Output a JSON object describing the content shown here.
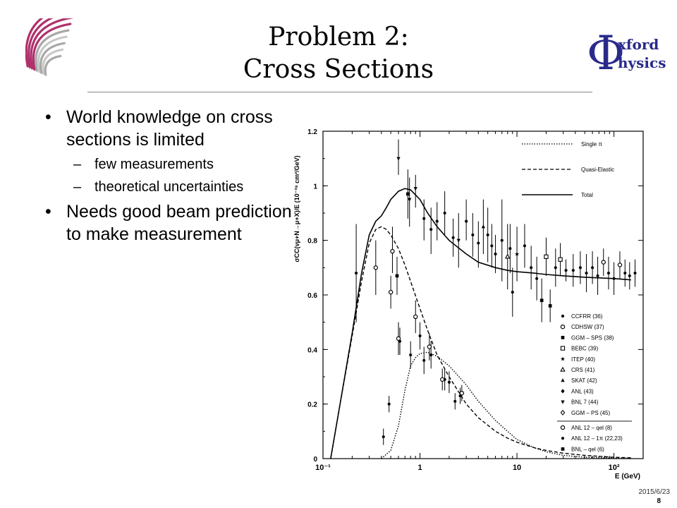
{
  "slide": {
    "title_line1": "Problem 2:",
    "title_line2": "Cross Sections",
    "bullets": [
      {
        "text": "World knowledge on cross sections is limited"
      },
      {
        "text": "few measurements"
      },
      {
        "text": "theoretical uncertainties"
      },
      {
        "text": "Needs good beam prediction to make measurement"
      }
    ],
    "footer_date": "2015/6/23",
    "page_number": "8"
  },
  "logo_right": {
    "letter": "Φ",
    "word1": "xford",
    "word2": "hysics",
    "colors": {
      "phi": "#2a2a8c",
      "text": "#2a2a8c"
    }
  },
  "logo_left": {
    "icon": "swirl-logo-icon",
    "colors": [
      "#a8a8a8",
      "#c8c8c8",
      "#b0306a"
    ]
  },
  "chart_data": {
    "type": "scatter",
    "xlabel": "E (GeV)",
    "ylabel": "σCC(νμ+N→μ+X)/E (10⁻³⁸ cm²/GeV)",
    "xscale": "log",
    "xlim": [
      0.1,
      200
    ],
    "ylim": [
      0,
      1.2
    ],
    "x_ticks": [
      {
        "v": 0.1,
        "label": "10⁻¹"
      },
      {
        "v": 1,
        "label": "1"
      },
      {
        "v": 10,
        "label": "10"
      },
      {
        "v": 100,
        "label": "10²"
      }
    ],
    "y_ticks": [
      0,
      0.2,
      0.4,
      0.6,
      0.8,
      1,
      1.2
    ],
    "y_tick_labels": [
      "0",
      "0.2",
      "0.4",
      "0.6",
      "0.8",
      "1",
      "1.2"
    ],
    "curves": [
      {
        "name": "Single π",
        "style": "dotted",
        "points": [
          [
            0.4,
            0
          ],
          [
            0.5,
            0.03
          ],
          [
            0.6,
            0.12
          ],
          [
            0.7,
            0.25
          ],
          [
            0.8,
            0.34
          ],
          [
            0.9,
            0.37
          ],
          [
            1.0,
            0.385
          ],
          [
            1.2,
            0.39
          ],
          [
            1.5,
            0.375
          ],
          [
            2,
            0.34
          ],
          [
            3,
            0.27
          ],
          [
            4,
            0.21
          ],
          [
            6,
            0.14
          ],
          [
            8,
            0.1
          ],
          [
            10,
            0.07
          ],
          [
            15,
            0.04
          ],
          [
            20,
            0.025
          ],
          [
            30,
            0.012
          ],
          [
            50,
            0.005
          ],
          [
            100,
            0.002
          ],
          [
            150,
            0.001
          ]
        ]
      },
      {
        "name": "Quasi-Elastic",
        "style": "dashed",
        "points": [
          [
            0.12,
            0
          ],
          [
            0.15,
            0.2
          ],
          [
            0.2,
            0.45
          ],
          [
            0.25,
            0.65
          ],
          [
            0.3,
            0.79
          ],
          [
            0.35,
            0.84
          ],
          [
            0.4,
            0.85
          ],
          [
            0.45,
            0.84
          ],
          [
            0.5,
            0.82
          ],
          [
            0.6,
            0.77
          ],
          [
            0.7,
            0.71
          ],
          [
            0.8,
            0.65
          ],
          [
            1.0,
            0.55
          ],
          [
            1.2,
            0.47
          ],
          [
            1.5,
            0.38
          ],
          [
            2,
            0.3
          ],
          [
            3,
            0.2
          ],
          [
            4,
            0.15
          ],
          [
            6,
            0.1
          ],
          [
            8,
            0.075
          ],
          [
            10,
            0.06
          ],
          [
            15,
            0.04
          ],
          [
            20,
            0.03
          ],
          [
            30,
            0.02
          ],
          [
            50,
            0.012
          ],
          [
            100,
            0.005
          ],
          [
            150,
            0.003
          ]
        ]
      },
      {
        "name": "Total",
        "style": "solid",
        "points": [
          [
            0.12,
            0
          ],
          [
            0.15,
            0.2
          ],
          [
            0.2,
            0.46
          ],
          [
            0.25,
            0.68
          ],
          [
            0.3,
            0.82
          ],
          [
            0.35,
            0.87
          ],
          [
            0.4,
            0.89
          ],
          [
            0.45,
            0.92
          ],
          [
            0.5,
            0.95
          ],
          [
            0.6,
            0.98
          ],
          [
            0.7,
            0.99
          ],
          [
            0.8,
            0.985
          ],
          [
            1.0,
            0.95
          ],
          [
            1.2,
            0.9
          ],
          [
            1.5,
            0.85
          ],
          [
            2,
            0.8
          ],
          [
            3,
            0.75
          ],
          [
            4,
            0.72
          ],
          [
            6,
            0.7
          ],
          [
            8,
            0.69
          ],
          [
            10,
            0.685
          ],
          [
            15,
            0.68
          ],
          [
            20,
            0.675
          ],
          [
            30,
            0.67
          ],
          [
            50,
            0.665
          ],
          [
            100,
            0.66
          ],
          [
            150,
            0.655
          ]
        ]
      }
    ],
    "legend_series": [
      {
        "name": "CCFRR (36)",
        "marker": "dot"
      },
      {
        "name": "CDHSW (37)",
        "marker": "circle"
      },
      {
        "name": "GGM – SPS (38)",
        "marker": "square-filled"
      },
      {
        "name": "BEBC (39)",
        "marker": "square-open"
      },
      {
        "name": "ITEP (40)",
        "marker": "star"
      },
      {
        "name": "CRS (41)",
        "marker": "triangle-open"
      },
      {
        "name": "SKAT (42)",
        "marker": "triangle-filled"
      },
      {
        "name": "ANL (43)",
        "marker": "diamond-filled"
      },
      {
        "name": "BNL 7 (44)",
        "marker": "triangle-down"
      },
      {
        "name": "GGM – PS (45)",
        "marker": "diamond-open"
      },
      {
        "name": "ANL 12 – qel (8)",
        "marker": "circle"
      },
      {
        "name": "ANL 12 – 1π (22,23)",
        "marker": "dot"
      },
      {
        "name": "BNL – qel (6)",
        "marker": "square-filled"
      }
    ],
    "points": [
      {
        "x": 0.22,
        "y": 0.68,
        "lo": 0.5,
        "hi": 0.86,
        "m": "dot"
      },
      {
        "x": 0.35,
        "y": 0.7,
        "lo": 0.6,
        "hi": 0.8,
        "m": "circle"
      },
      {
        "x": 0.5,
        "y": 0.61,
        "lo": 0.55,
        "hi": 0.67,
        "m": "circle"
      },
      {
        "x": 0.52,
        "y": 0.76,
        "lo": 0.68,
        "hi": 0.85,
        "m": "circle"
      },
      {
        "x": 0.58,
        "y": 0.67,
        "lo": 0.6,
        "hi": 0.74,
        "m": "square-filled"
      },
      {
        "x": 0.6,
        "y": 1.1,
        "lo": 1.04,
        "hi": 1.17,
        "m": "triangle-down"
      },
      {
        "x": 0.75,
        "y": 0.97,
        "lo": 0.88,
        "hi": 1.06,
        "m": "square-filled"
      },
      {
        "x": 0.78,
        "y": 0.95,
        "lo": 0.85,
        "hi": 1.03,
        "m": "triangle-down"
      },
      {
        "x": 0.9,
        "y": 0.99,
        "lo": 0.92,
        "hi": 1.04,
        "m": "triangle-down"
      },
      {
        "x": 1.1,
        "y": 0.88,
        "lo": 0.8,
        "hi": 0.95,
        "m": "dot"
      },
      {
        "x": 1.3,
        "y": 0.84,
        "lo": 0.75,
        "hi": 0.92,
        "m": "dot"
      },
      {
        "x": 1.5,
        "y": 0.87,
        "lo": 0.8,
        "hi": 0.94,
        "m": "dot"
      },
      {
        "x": 1.8,
        "y": 0.9,
        "lo": 0.82,
        "hi": 0.98,
        "m": "dot"
      },
      {
        "x": 2.2,
        "y": 0.81,
        "lo": 0.74,
        "hi": 0.88,
        "m": "dot"
      },
      {
        "x": 2.5,
        "y": 0.8,
        "lo": 0.7,
        "hi": 0.9,
        "m": "triangle-down"
      },
      {
        "x": 3,
        "y": 0.87,
        "lo": 0.8,
        "hi": 0.95,
        "m": "dot"
      },
      {
        "x": 3.5,
        "y": 0.82,
        "lo": 0.74,
        "hi": 0.9,
        "m": "dot"
      },
      {
        "x": 4,
        "y": 0.79,
        "lo": 0.7,
        "hi": 0.87,
        "m": "dot"
      },
      {
        "x": 4.5,
        "y": 0.85,
        "lo": 0.75,
        "hi": 0.95,
        "m": "triangle-filled"
      },
      {
        "x": 5,
        "y": 0.82,
        "lo": 0.72,
        "hi": 0.92,
        "m": "dot"
      },
      {
        "x": 5.5,
        "y": 0.78,
        "lo": 0.7,
        "hi": 0.86,
        "m": "dot"
      },
      {
        "x": 6,
        "y": 0.75,
        "lo": 0.68,
        "hi": 0.82,
        "m": "dot"
      },
      {
        "x": 7,
        "y": 0.8,
        "lo": 0.65,
        "hi": 0.95,
        "m": "dot"
      },
      {
        "x": 8,
        "y": 0.74,
        "lo": 0.62,
        "hi": 0.86,
        "m": "triangle-open"
      },
      {
        "x": 8.5,
        "y": 0.77,
        "lo": 0.68,
        "hi": 0.86,
        "m": "dot"
      },
      {
        "x": 9,
        "y": 0.61,
        "lo": 0.52,
        "hi": 0.7,
        "m": "dot"
      },
      {
        "x": 10,
        "y": 0.75,
        "lo": 0.65,
        "hi": 0.85,
        "m": "star"
      },
      {
        "x": 12,
        "y": 0.78,
        "lo": 0.7,
        "hi": 0.86,
        "m": "dot"
      },
      {
        "x": 14,
        "y": 0.7,
        "lo": 0.62,
        "hi": 0.78,
        "m": "dot"
      },
      {
        "x": 16,
        "y": 0.66,
        "lo": 0.58,
        "hi": 0.74,
        "m": "dot"
      },
      {
        "x": 18,
        "y": 0.58,
        "lo": 0.5,
        "hi": 0.66,
        "m": "square-filled"
      },
      {
        "x": 20,
        "y": 0.74,
        "lo": 0.67,
        "hi": 0.81,
        "m": "square-open"
      },
      {
        "x": 22,
        "y": 0.56,
        "lo": 0.5,
        "hi": 0.62,
        "m": "square-filled"
      },
      {
        "x": 25,
        "y": 0.7,
        "lo": 0.63,
        "hi": 0.77,
        "m": "dot"
      },
      {
        "x": 28,
        "y": 0.73,
        "lo": 0.67,
        "hi": 0.79,
        "m": "square-open"
      },
      {
        "x": 32,
        "y": 0.69,
        "lo": 0.65,
        "hi": 0.73,
        "m": "dot"
      },
      {
        "x": 38,
        "y": 0.69,
        "lo": 0.63,
        "hi": 0.75,
        "m": "dot"
      },
      {
        "x": 45,
        "y": 0.7,
        "lo": 0.64,
        "hi": 0.76,
        "m": "dot"
      },
      {
        "x": 52,
        "y": 0.68,
        "lo": 0.61,
        "hi": 0.75,
        "m": "dot"
      },
      {
        "x": 60,
        "y": 0.7,
        "lo": 0.64,
        "hi": 0.76,
        "m": "dot"
      },
      {
        "x": 68,
        "y": 0.67,
        "lo": 0.6,
        "hi": 0.74,
        "m": "dot"
      },
      {
        "x": 78,
        "y": 0.72,
        "lo": 0.67,
        "hi": 0.77,
        "m": "circle"
      },
      {
        "x": 88,
        "y": 0.68,
        "lo": 0.62,
        "hi": 0.74,
        "m": "dot"
      },
      {
        "x": 100,
        "y": 0.66,
        "lo": 0.6,
        "hi": 0.72,
        "m": "dot"
      },
      {
        "x": 115,
        "y": 0.71,
        "lo": 0.66,
        "hi": 0.76,
        "m": "circle"
      },
      {
        "x": 130,
        "y": 0.68,
        "lo": 0.63,
        "hi": 0.73,
        "m": "dot"
      },
      {
        "x": 145,
        "y": 0.67,
        "lo": 0.62,
        "hi": 0.72,
        "m": "dot"
      },
      {
        "x": 165,
        "y": 0.68,
        "lo": 0.63,
        "hi": 0.73,
        "m": "dot"
      },
      {
        "x": 0.42,
        "y": 0.08,
        "lo": 0.05,
        "hi": 0.11,
        "m": "dot"
      },
      {
        "x": 0.48,
        "y": 0.2,
        "lo": 0.17,
        "hi": 0.23,
        "m": "dot"
      },
      {
        "x": 0.62,
        "y": 0.43,
        "lo": 0.38,
        "hi": 0.48,
        "m": "dot"
      },
      {
        "x": 0.8,
        "y": 0.38,
        "lo": 0.33,
        "hi": 0.43,
        "m": "dot"
      },
      {
        "x": 1.0,
        "y": 0.45,
        "lo": 0.4,
        "hi": 0.5,
        "m": "dot"
      },
      {
        "x": 1.1,
        "y": 0.36,
        "lo": 0.31,
        "hi": 0.41,
        "m": "dot"
      },
      {
        "x": 1.3,
        "y": 0.38,
        "lo": 0.33,
        "hi": 0.43,
        "m": "dot"
      },
      {
        "x": 1.8,
        "y": 0.29,
        "lo": 0.25,
        "hi": 0.33,
        "m": "dot"
      },
      {
        "x": 2.0,
        "y": 0.28,
        "lo": 0.24,
        "hi": 0.32,
        "m": "dot"
      },
      {
        "x": 2.3,
        "y": 0.21,
        "lo": 0.18,
        "hi": 0.24,
        "m": "dot"
      },
      {
        "x": 2.6,
        "y": 0.23,
        "lo": 0.2,
        "hi": 0.26,
        "m": "dot"
      },
      {
        "x": 0.6,
        "y": 0.44,
        "lo": 0.38,
        "hi": 0.5,
        "m": "circle"
      },
      {
        "x": 0.9,
        "y": 0.52,
        "lo": 0.46,
        "hi": 0.58,
        "m": "circle"
      },
      {
        "x": 1.25,
        "y": 0.41,
        "lo": 0.36,
        "hi": 0.46,
        "m": "circle"
      },
      {
        "x": 1.7,
        "y": 0.29,
        "lo": 0.25,
        "hi": 0.33,
        "m": "circle"
      },
      {
        "x": 2.7,
        "y": 0.24,
        "lo": 0.21,
        "hi": 0.27,
        "m": "circle"
      }
    ]
  }
}
